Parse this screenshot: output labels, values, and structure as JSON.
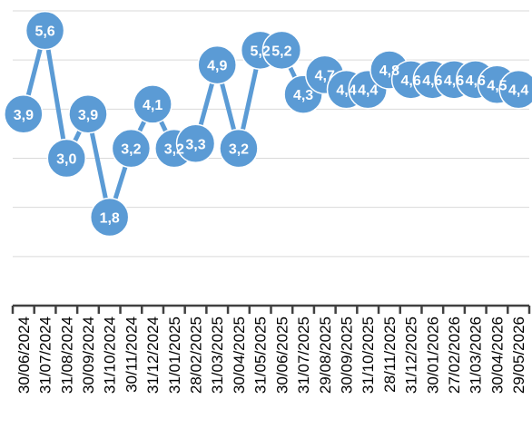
{
  "chart_data": {
    "type": "line",
    "title": "",
    "xlabel": "",
    "ylabel": "",
    "ylim": [
      0,
      6
    ],
    "grid": true,
    "legend": "none",
    "color": "#5b9bd5",
    "categories": [
      "30/06/2024",
      "31/07/2024",
      "31/08/2024",
      "30/09/2024",
      "31/10/2024",
      "30/11/2024",
      "31/12/2024",
      "31/01/2025",
      "28/02/2025",
      "31/03/2025",
      "30/04/2025",
      "31/05/2025",
      "30/06/2025",
      "31/07/2025",
      "29/08/2025",
      "30/09/2025",
      "31/10/2025",
      "28/11/2025",
      "31/12/2025",
      "30/01/2026",
      "27/02/2026",
      "31/03/2026",
      "30/04/2026",
      "29/05/2026"
    ],
    "values": [
      3.9,
      5.6,
      3.0,
      3.9,
      1.8,
      3.2,
      4.1,
      3.2,
      3.3,
      4.9,
      3.2,
      5.2,
      5.2,
      4.3,
      4.7,
      4.4,
      4.4,
      4.8,
      4.6,
      4.6,
      4.6,
      4.6,
      4.5,
      4.4
    ],
    "data_labels": [
      "3,9",
      "5,6",
      "3,0",
      "3,9",
      "1,8",
      "3,2",
      "4,1",
      "3,2",
      "3,3",
      "4,9",
      "3,2",
      "5,2",
      "5,2",
      "4,3",
      "4,7",
      "4,4",
      "4,4",
      "4,8",
      "4,6",
      "4,6",
      "4,6",
      "4,6",
      "4,5",
      "4,4"
    ]
  }
}
